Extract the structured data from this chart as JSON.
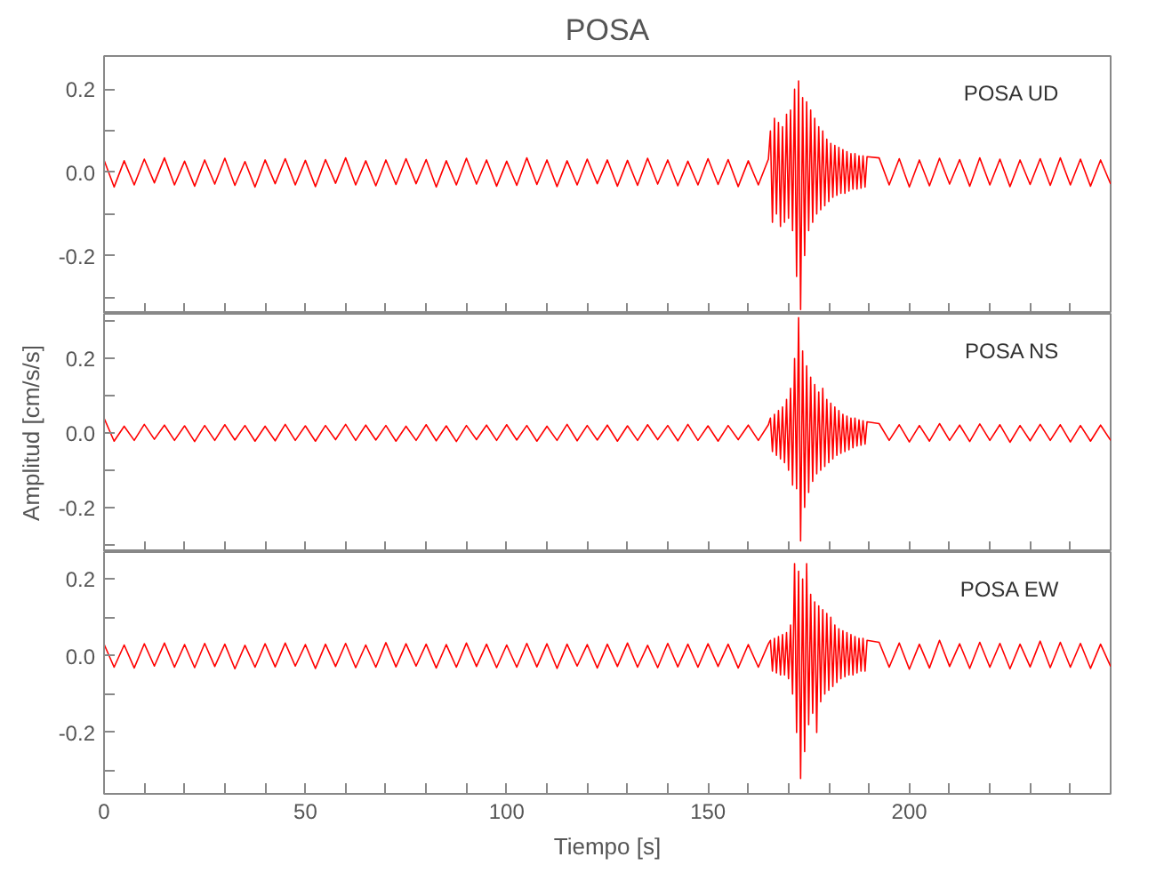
{
  "chart_data": [
    {
      "type": "line",
      "title": "POSA",
      "annotations": [
        "POSA   UD"
      ],
      "tick_labels": "y",
      "xlim": [
        0,
        250
      ],
      "ylim": [
        -0.34,
        0.28
      ],
      "xticks": [
        {
          "value": 0,
          "label": null
        },
        {
          "value": 10,
          "label": null
        },
        {
          "value": 20,
          "label": null
        },
        {
          "value": 30,
          "label": null
        },
        {
          "value": 40,
          "label": null
        },
        {
          "value": 50,
          "label": null
        },
        {
          "value": 60,
          "label": null
        },
        {
          "value": 70,
          "label": null
        },
        {
          "value": 80,
          "label": null
        },
        {
          "value": 90,
          "label": null
        },
        {
          "value": 100,
          "label": null
        },
        {
          "value": 110,
          "label": null
        },
        {
          "value": 120,
          "label": null
        },
        {
          "value": 130,
          "label": null
        },
        {
          "value": 140,
          "label": null
        },
        {
          "value": 150,
          "label": null
        },
        {
          "value": 160,
          "label": null
        },
        {
          "value": 170,
          "label": null
        },
        {
          "value": 180,
          "label": null
        },
        {
          "value": 190,
          "label": null
        },
        {
          "value": 200,
          "label": null
        },
        {
          "value": 210,
          "label": null
        },
        {
          "value": 220,
          "label": null
        },
        {
          "value": 230,
          "label": null
        },
        {
          "value": 240,
          "label": null
        }
      ],
      "yticks": [
        {
          "value": -0.3,
          "label": null
        },
        {
          "value": -0.2,
          "label": "-0.2"
        },
        {
          "value": -0.1,
          "label": null
        },
        {
          "value": 0,
          "label": "0.0"
        },
        {
          "value": 0.1,
          "label": null
        },
        {
          "value": 0.2,
          "label": "0.2"
        }
      ],
      "x": [
        0,
        2.5,
        5,
        7.5,
        10,
        12.5,
        15,
        17.5,
        20,
        22.5,
        25,
        27.5,
        30,
        32.5,
        35,
        37.5,
        40,
        42.5,
        45,
        47.5,
        50,
        52.5,
        55,
        57.5,
        60,
        62.5,
        65,
        67.5,
        70,
        72.5,
        75,
        77.5,
        80,
        82.5,
        85,
        87.5,
        90,
        92.5,
        95,
        97.5,
        100,
        102.5,
        105,
        107.5,
        110,
        112.5,
        115,
        117.5,
        120,
        122.5,
        125,
        127.5,
        130,
        132.5,
        135,
        137.5,
        140,
        142.5,
        145,
        147.5,
        150,
        152.5,
        155,
        157.5,
        160,
        162.5,
        165,
        165.5,
        166,
        166.5,
        167,
        167.5,
        168,
        168.5,
        169,
        169.5,
        170,
        170.5,
        171,
        171.5,
        172,
        172.5,
        173,
        173.5,
        174,
        174.5,
        175,
        175.5,
        176,
        176.5,
        177,
        177.5,
        178,
        178.5,
        179,
        179.5,
        180,
        180.5,
        181,
        181.5,
        182,
        182.5,
        183,
        183.5,
        184,
        184.5,
        185,
        185.5,
        186,
        186.5,
        187,
        187.5,
        188,
        188.5,
        189,
        189.5,
        192.5,
        195,
        197.5,
        200,
        202.5,
        205,
        207.5,
        210,
        212.5,
        215,
        217.5,
        220,
        222.5,
        225,
        227.5,
        230,
        232.5,
        235,
        237.5,
        240,
        242.5,
        245,
        247.5,
        250
      ],
      "series": [
        {
          "color": "#ff0000",
          "values": [
            0.03,
            -0.035,
            0.028,
            -0.03,
            0.032,
            -0.025,
            0.035,
            -0.03,
            0.027,
            -0.033,
            0.03,
            -0.028,
            0.034,
            -0.031,
            0.026,
            -0.035,
            0.03,
            -0.027,
            0.033,
            -0.03,
            0.029,
            -0.034,
            0.031,
            -0.026,
            0.035,
            -0.03,
            0.028,
            -0.032,
            0.03,
            -0.029,
            0.033,
            -0.027,
            0.031,
            -0.035,
            0.028,
            -0.03,
            0.034,
            -0.028,
            0.03,
            -0.033,
            0.027,
            -0.031,
            0.035,
            -0.029,
            0.03,
            -0.034,
            0.028,
            -0.03,
            0.032,
            -0.027,
            0.03,
            -0.033,
            0.029,
            -0.031,
            0.034,
            -0.028,
            0.03,
            -0.032,
            0.027,
            -0.03,
            0.033,
            -0.029,
            0.031,
            -0.034,
            0.028,
            -0.03,
            0.032,
            0.1,
            -0.12,
            0.13,
            -0.1,
            0.12,
            -0.13,
            0.11,
            -0.12,
            0.14,
            -0.11,
            0.15,
            -0.14,
            0.2,
            -0.25,
            0.22,
            -0.33,
            0.18,
            -0.2,
            0.17,
            -0.14,
            0.15,
            -0.12,
            0.13,
            -0.1,
            0.11,
            -0.09,
            0.1,
            -0.08,
            0.08,
            -0.07,
            0.07,
            -0.06,
            0.065,
            -0.055,
            0.06,
            -0.05,
            0.055,
            -0.05,
            0.05,
            -0.045,
            0.045,
            -0.04,
            0.045,
            -0.04,
            0.04,
            -0.038,
            0.04,
            -0.035,
            0.038,
            0.035,
            -0.03,
            0.033,
            -0.035,
            0.03,
            -0.032,
            0.034,
            -0.028,
            0.031,
            -0.033,
            0.035,
            -0.03,
            0.032,
            -0.034,
            0.03,
            -0.029,
            0.033,
            -0.031,
            0.035,
            -0.03,
            0.032,
            -0.033,
            0.03,
            -0.028
          ]
        }
      ]
    },
    {
      "type": "line",
      "ylabel": "Amplitud [cm/s/s]",
      "annotations": [
        "POSA   NS"
      ],
      "tick_labels": "y",
      "xlim": [
        0,
        250
      ],
      "ylim": [
        -0.32,
        0.32
      ],
      "xticks": [
        {
          "value": 0,
          "label": null
        },
        {
          "value": 10,
          "label": null
        },
        {
          "value": 20,
          "label": null
        },
        {
          "value": 30,
          "label": null
        },
        {
          "value": 40,
          "label": null
        },
        {
          "value": 50,
          "label": null
        },
        {
          "value": 60,
          "label": null
        },
        {
          "value": 70,
          "label": null
        },
        {
          "value": 80,
          "label": null
        },
        {
          "value": 90,
          "label": null
        },
        {
          "value": 100,
          "label": null
        },
        {
          "value": 110,
          "label": null
        },
        {
          "value": 120,
          "label": null
        },
        {
          "value": 130,
          "label": null
        },
        {
          "value": 140,
          "label": null
        },
        {
          "value": 150,
          "label": null
        },
        {
          "value": 160,
          "label": null
        },
        {
          "value": 170,
          "label": null
        },
        {
          "value": 180,
          "label": null
        },
        {
          "value": 190,
          "label": null
        },
        {
          "value": 200,
          "label": null
        },
        {
          "value": 210,
          "label": null
        },
        {
          "value": 220,
          "label": null
        },
        {
          "value": 230,
          "label": null
        },
        {
          "value": 240,
          "label": null
        }
      ],
      "yticks": [
        {
          "value": -0.3,
          "label": null
        },
        {
          "value": -0.2,
          "label": "-0.2"
        },
        {
          "value": -0.1,
          "label": null
        },
        {
          "value": 0,
          "label": "0.0"
        },
        {
          "value": 0.1,
          "label": null
        },
        {
          "value": 0.2,
          "label": "0.2"
        },
        {
          "value": 0.3,
          "label": null
        }
      ],
      "x": [
        0,
        2.5,
        5,
        7.5,
        10,
        12.5,
        15,
        17.5,
        20,
        22.5,
        25,
        27.5,
        30,
        32.5,
        35,
        37.5,
        40,
        42.5,
        45,
        47.5,
        50,
        52.5,
        55,
        57.5,
        60,
        62.5,
        65,
        67.5,
        70,
        72.5,
        75,
        77.5,
        80,
        82.5,
        85,
        87.5,
        90,
        92.5,
        95,
        97.5,
        100,
        102.5,
        105,
        107.5,
        110,
        112.5,
        115,
        117.5,
        120,
        122.5,
        125,
        127.5,
        130,
        132.5,
        135,
        137.5,
        140,
        142.5,
        145,
        147.5,
        150,
        152.5,
        155,
        157.5,
        160,
        162.5,
        165,
        165.5,
        166,
        166.5,
        167,
        167.5,
        168,
        168.5,
        169,
        169.5,
        170,
        170.5,
        171,
        171.5,
        172,
        172.5,
        173,
        173.5,
        174,
        174.5,
        175,
        175.5,
        176,
        176.5,
        177,
        177.5,
        178,
        178.5,
        179,
        179.5,
        180,
        180.5,
        181,
        181.5,
        182,
        182.5,
        183,
        183.5,
        184,
        184.5,
        185,
        185.5,
        186,
        186.5,
        187,
        187.5,
        188,
        188.5,
        189,
        189.5,
        192.5,
        195,
        197.5,
        200,
        202.5,
        205,
        207.5,
        210,
        212.5,
        215,
        217.5,
        220,
        222.5,
        225,
        227.5,
        230,
        232.5,
        235,
        237.5,
        240,
        242.5,
        245,
        247.5,
        250
      ],
      "series": [
        {
          "color": "#ff0000",
          "values": [
            0.04,
            -0.022,
            0.018,
            -0.02,
            0.023,
            -0.017,
            0.021,
            -0.02,
            0.019,
            -0.023,
            0.02,
            -0.02,
            0.022,
            -0.019,
            0.02,
            -0.022,
            0.018,
            -0.021,
            0.023,
            -0.02,
            0.019,
            -0.022,
            0.02,
            -0.018,
            0.023,
            -0.02,
            0.021,
            -0.019,
            0.02,
            -0.022,
            0.018,
            -0.02,
            0.022,
            -0.021,
            0.019,
            -0.023,
            0.02,
            -0.018,
            0.021,
            -0.02,
            0.022,
            -0.019,
            0.02,
            -0.022,
            0.018,
            -0.02,
            0.023,
            -0.021,
            0.02,
            -0.019,
            0.021,
            -0.022,
            0.019,
            -0.02,
            0.022,
            -0.018,
            0.02,
            -0.021,
            0.023,
            -0.02,
            0.019,
            -0.022,
            0.02,
            -0.018,
            0.021,
            -0.02,
            0.022,
            0.04,
            -0.05,
            0.05,
            -0.06,
            0.06,
            -0.07,
            0.07,
            -0.08,
            0.09,
            -0.1,
            0.12,
            -0.14,
            0.2,
            -0.15,
            0.31,
            -0.29,
            0.22,
            -0.2,
            0.18,
            -0.16,
            0.15,
            -0.13,
            0.13,
            -0.11,
            0.11,
            -0.1,
            0.12,
            -0.09,
            0.09,
            -0.08,
            0.08,
            -0.07,
            0.07,
            -0.06,
            0.06,
            -0.055,
            0.05,
            -0.05,
            0.045,
            -0.045,
            0.04,
            -0.04,
            0.04,
            -0.035,
            0.035,
            -0.033,
            0.033,
            -0.03,
            0.03,
            0.025,
            -0.02,
            0.022,
            -0.024,
            0.02,
            -0.022,
            0.025,
            -0.02,
            0.021,
            -0.023,
            0.024,
            -0.02,
            0.022,
            -0.025,
            0.02,
            -0.021,
            0.023,
            -0.02,
            0.022,
            -0.024,
            0.02,
            -0.022,
            0.021,
            -0.02
          ]
        }
      ]
    },
    {
      "type": "line",
      "xlabel": "Tiempo [s]",
      "annotations": [
        "POSA   EW"
      ],
      "xlim": [
        0,
        250
      ],
      "ylim": [
        -0.36,
        0.27
      ],
      "xticks": [
        0,
        {
          "value": 10,
          "label": null
        },
        {
          "value": 20,
          "label": null
        },
        {
          "value": 30,
          "label": null
        },
        {
          "value": 40,
          "label": null
        },
        50,
        {
          "value": 60,
          "label": null
        },
        {
          "value": 70,
          "label": null
        },
        {
          "value": 80,
          "label": null
        },
        {
          "value": 90,
          "label": null
        },
        100,
        {
          "value": 110,
          "label": null
        },
        {
          "value": 120,
          "label": null
        },
        {
          "value": 130,
          "label": null
        },
        {
          "value": 140,
          "label": null
        },
        150,
        {
          "value": 160,
          "label": null
        },
        {
          "value": 170,
          "label": null
        },
        {
          "value": 180,
          "label": null
        },
        {
          "value": 190,
          "label": null
        },
        200,
        {
          "value": 210,
          "label": null
        },
        {
          "value": 220,
          "label": null
        },
        {
          "value": 230,
          "label": null
        },
        {
          "value": 240,
          "label": null
        }
      ],
      "yticks": [
        {
          "value": -0.3,
          "label": null
        },
        {
          "value": -0.2,
          "label": "-0.2"
        },
        {
          "value": -0.1,
          "label": null
        },
        {
          "value": 0,
          "label": "0.0"
        },
        {
          "value": 0.1,
          "label": null
        },
        {
          "value": 0.2,
          "label": "0.2"
        }
      ],
      "x": [
        0,
        2.5,
        5,
        7.5,
        10,
        12.5,
        15,
        17.5,
        20,
        22.5,
        25,
        27.5,
        30,
        32.5,
        35,
        37.5,
        40,
        42.5,
        45,
        47.5,
        50,
        52.5,
        55,
        57.5,
        60,
        62.5,
        65,
        67.5,
        70,
        72.5,
        75,
        77.5,
        80,
        82.5,
        85,
        87.5,
        90,
        92.5,
        95,
        97.5,
        100,
        102.5,
        105,
        107.5,
        110,
        112.5,
        115,
        117.5,
        120,
        122.5,
        125,
        127.5,
        130,
        132.5,
        135,
        137.5,
        140,
        142.5,
        145,
        147.5,
        150,
        152.5,
        155,
        157.5,
        160,
        162.5,
        165,
        165.5,
        166,
        166.5,
        167,
        167.5,
        168,
        168.5,
        169,
        169.5,
        170,
        170.5,
        171,
        171.5,
        172,
        172.5,
        173,
        173.5,
        174,
        174.5,
        175,
        175.5,
        176,
        176.5,
        177,
        177.5,
        178,
        178.5,
        179,
        179.5,
        180,
        180.5,
        181,
        181.5,
        182,
        182.5,
        183,
        183.5,
        184,
        184.5,
        185,
        185.5,
        186,
        186.5,
        187,
        187.5,
        188,
        188.5,
        189,
        189.5,
        192.5,
        195,
        197.5,
        200,
        202.5,
        205,
        207.5,
        210,
        212.5,
        215,
        217.5,
        220,
        222.5,
        225,
        227.5,
        230,
        232.5,
        235,
        237.5,
        240,
        242.5,
        245,
        247.5,
        250
      ],
      "series": [
        {
          "color": "#ff0000",
          "values": [
            0.03,
            -0.03,
            0.028,
            -0.032,
            0.031,
            -0.027,
            0.033,
            -0.03,
            0.029,
            -0.031,
            0.032,
            -0.028,
            0.03,
            -0.034,
            0.027,
            -0.03,
            0.031,
            -0.029,
            0.033,
            -0.027,
            0.029,
            -0.033,
            0.03,
            -0.028,
            0.032,
            -0.031,
            0.028,
            -0.03,
            0.034,
            -0.029,
            0.031,
            -0.027,
            0.03,
            -0.032,
            0.029,
            -0.03,
            0.033,
            -0.028,
            0.03,
            -0.031,
            0.028,
            -0.03,
            0.032,
            -0.029,
            0.031,
            -0.033,
            0.03,
            -0.027,
            0.029,
            -0.032,
            0.03,
            -0.028,
            0.033,
            -0.03,
            0.027,
            -0.031,
            0.032,
            -0.029,
            0.03,
            -0.03,
            0.031,
            -0.028,
            0.03,
            -0.032,
            0.029,
            -0.03,
            0.031,
            0.04,
            -0.04,
            0.045,
            -0.045,
            0.05,
            -0.05,
            0.055,
            -0.05,
            0.06,
            -0.06,
            0.08,
            -0.1,
            0.24,
            -0.2,
            0.22,
            -0.32,
            0.2,
            -0.25,
            0.24,
            -0.18,
            0.16,
            -0.15,
            0.14,
            -0.2,
            0.13,
            -0.12,
            0.12,
            -0.1,
            0.11,
            -0.09,
            0.1,
            -0.08,
            0.08,
            -0.07,
            0.07,
            -0.06,
            0.065,
            -0.055,
            0.06,
            -0.05,
            0.055,
            -0.05,
            0.05,
            -0.045,
            0.045,
            -0.04,
            0.045,
            -0.04,
            0.04,
            0.035,
            -0.03,
            0.033,
            -0.035,
            0.03,
            -0.032,
            0.04,
            -0.028,
            0.031,
            -0.033,
            0.035,
            -0.03,
            0.032,
            -0.034,
            0.03,
            -0.029,
            0.038,
            -0.031,
            0.035,
            -0.03,
            0.032,
            -0.033,
            0.03,
            -0.028
          ]
        }
      ]
    }
  ]
}
